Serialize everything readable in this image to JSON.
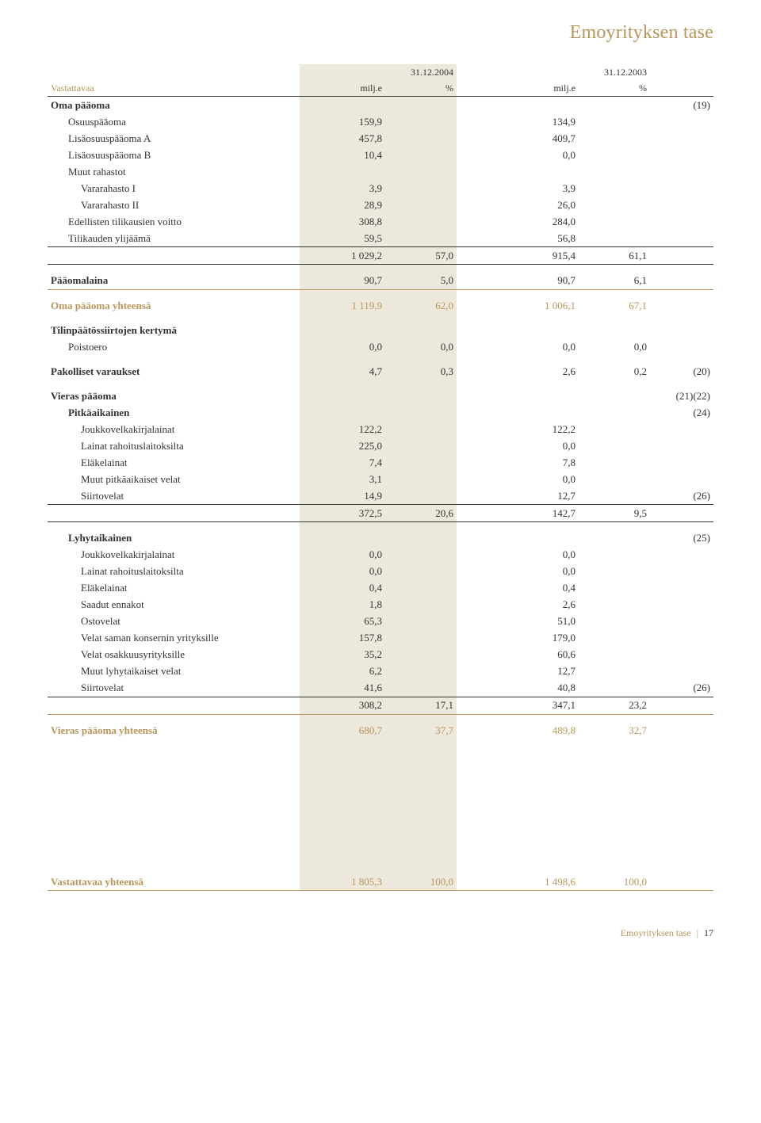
{
  "page_title": "Emoyrityksen tase",
  "colors": {
    "accent": "#b8965a",
    "shade": "#ece8dc",
    "text": "#333333",
    "bg": "#ffffff"
  },
  "typography": {
    "title_fontsize": 24,
    "body_fontsize": 13
  },
  "header": {
    "date_2004": "31.12.2004",
    "date_2003": "31.12.2003",
    "vastattavaa": "Vastattavaa",
    "unit": "milj.e",
    "pct": "%"
  },
  "oma_paaoma": {
    "title": "Oma pääoma",
    "note": "(19)",
    "rows": [
      {
        "label": "Osuuspääoma",
        "v04": "159,9",
        "v03": "134,9"
      },
      {
        "label": "Lisäosuuspääoma A",
        "v04": "457,8",
        "v03": "409,7"
      },
      {
        "label": "Lisäosuuspääoma B",
        "v04": "10,4",
        "v03": "0,0"
      },
      {
        "label": "Muut rahastot",
        "v04": "",
        "v03": ""
      },
      {
        "label": "Vararahasto I",
        "v04": "3,9",
        "v03": "3,9",
        "indent": true
      },
      {
        "label": "Vararahasto II",
        "v04": "28,9",
        "v03": "26,0",
        "indent": true
      },
      {
        "label": "Edellisten tilikausien voitto",
        "v04": "308,8",
        "v03": "284,0"
      },
      {
        "label": "Tilikauden ylijäämä",
        "v04": "59,5",
        "v03": "56,8"
      }
    ],
    "subtotal": {
      "v04": "1 029,2",
      "p04": "57,0",
      "v03": "915,4",
      "p03": "61,1"
    }
  },
  "paaomalaina": {
    "label": "Pääomalaina",
    "v04": "90,7",
    "p04": "5,0",
    "v03": "90,7",
    "p03": "6,1"
  },
  "oma_paaoma_yht": {
    "label": "Oma pääoma yhteensä",
    "v04": "1 119,9",
    "p04": "62,0",
    "v03": "1 006,1",
    "p03": "67,1"
  },
  "tilinpaatos": {
    "title": "Tilinpäätössiirtojen kertymä",
    "row": {
      "label": "Poistoero",
      "v04": "0,0",
      "p04": "0,0",
      "v03": "0,0",
      "p03": "0,0"
    }
  },
  "pakolliset": {
    "label": "Pakolliset varaukset",
    "v04": "4,7",
    "p04": "0,3",
    "v03": "2,6",
    "p03": "0,2",
    "note": "(20)"
  },
  "vieras_paaoma": {
    "title": "Vieras pääoma",
    "note": "(21)(22)",
    "pitkaaikainen": {
      "title": "Pitkäaikainen",
      "note": "(24)",
      "rows": [
        {
          "label": "Joukkovelkakirjalainat",
          "v04": "122,2",
          "v03": "122,2"
        },
        {
          "label": "Lainat rahoituslaitoksilta",
          "v04": "225,0",
          "v03": "0,0"
        },
        {
          "label": "Eläkelainat",
          "v04": "7,4",
          "v03": "7,8"
        },
        {
          "label": "Muut pitkäaikaiset velat",
          "v04": "3,1",
          "v03": "0,0"
        },
        {
          "label": "Siirtovelat",
          "v04": "14,9",
          "v03": "12,7",
          "note": "(26)"
        }
      ],
      "subtotal": {
        "v04": "372,5",
        "p04": "20,6",
        "v03": "142,7",
        "p03": "9,5"
      }
    },
    "lyhytaikainen": {
      "title": "Lyhytaikainen",
      "note": "(25)",
      "rows": [
        {
          "label": "Joukkovelkakirjalainat",
          "v04": "0,0",
          "v03": "0,0"
        },
        {
          "label": "Lainat rahoituslaitoksilta",
          "v04": "0,0",
          "v03": "0,0"
        },
        {
          "label": "Eläkelainat",
          "v04": "0,4",
          "v03": "0,4"
        },
        {
          "label": "Saadut ennakot",
          "v04": "1,8",
          "v03": "2,6"
        },
        {
          "label": "Ostovelat",
          "v04": "65,3",
          "v03": "51,0"
        },
        {
          "label": "Velat saman konsernin yrityksille",
          "v04": "157,8",
          "v03": "179,0"
        },
        {
          "label": "Velat osakkuusyrityksille",
          "v04": "35,2",
          "v03": "60,6"
        },
        {
          "label": "Muut lyhytaikaiset velat",
          "v04": "6,2",
          "v03": "12,7"
        },
        {
          "label": "Siirtovelat",
          "v04": "41,6",
          "v03": "40,8",
          "note": "(26)"
        }
      ],
      "subtotal": {
        "v04": "308,2",
        "p04": "17,1",
        "v03": "347,1",
        "p03": "23,2"
      }
    }
  },
  "vieras_yht": {
    "label": "Vieras pääoma yhteensä",
    "v04": "680,7",
    "p04": "37,7",
    "v03": "489,8",
    "p03": "32,7"
  },
  "vastattavaa_yht": {
    "label": "Vastattavaa yhteensä",
    "v04": "1 805,3",
    "p04": "100,0",
    "v03": "1 498,6",
    "p03": "100,0"
  },
  "footer": {
    "section": "Emoyrityksen tase",
    "page": "17"
  }
}
